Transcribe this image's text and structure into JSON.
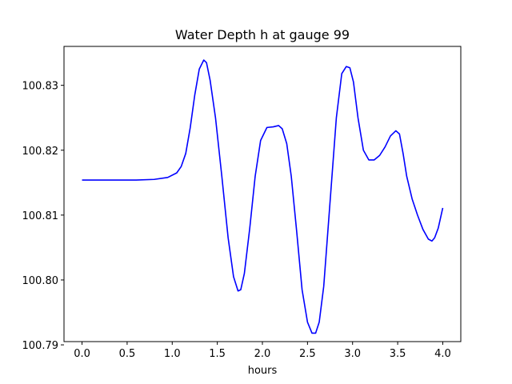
{
  "chart_data": {
    "type": "line",
    "title": "Water Depth h at gauge 99",
    "xlabel": "hours",
    "ylabel": "",
    "xlim": [
      -0.2,
      4.2
    ],
    "ylim": [
      100.7905,
      100.836
    ],
    "xticks": [
      0.0,
      0.5,
      1.0,
      1.5,
      2.0,
      2.5,
      3.0,
      3.5,
      4.0
    ],
    "xtick_labels": [
      "0.0",
      "0.5",
      "1.0",
      "1.5",
      "2.0",
      "2.5",
      "3.0",
      "3.5",
      "4.0"
    ],
    "yticks": [
      100.79,
      100.8,
      100.81,
      100.82,
      100.83
    ],
    "ytick_labels": [
      "100.79",
      "100.80",
      "100.81",
      "100.82",
      "100.83"
    ],
    "grid": false,
    "legend": "none",
    "series": [
      {
        "color": "#0000ff",
        "x": [
          0.0,
          0.2,
          0.4,
          0.6,
          0.8,
          0.95,
          1.05,
          1.1,
          1.15,
          1.2,
          1.25,
          1.3,
          1.35,
          1.38,
          1.42,
          1.48,
          1.55,
          1.62,
          1.68,
          1.73,
          1.76,
          1.8,
          1.86,
          1.92,
          1.98,
          2.05,
          2.12,
          2.18,
          2.22,
          2.27,
          2.32,
          2.38,
          2.44,
          2.5,
          2.55,
          2.59,
          2.63,
          2.68,
          2.75,
          2.82,
          2.88,
          2.93,
          2.97,
          3.01,
          3.06,
          3.12,
          3.18,
          3.24,
          3.3,
          3.36,
          3.42,
          3.48,
          3.52,
          3.56,
          3.6,
          3.66,
          3.72,
          3.78,
          3.84,
          3.88,
          3.91,
          3.95,
          4.0
        ],
        "y": [
          100.8154,
          100.8154,
          100.8154,
          100.8154,
          100.8155,
          100.8158,
          100.8165,
          100.8175,
          100.8195,
          100.8235,
          100.8285,
          100.8325,
          100.8339,
          100.8335,
          100.8308,
          100.825,
          100.816,
          100.8065,
          100.8005,
          100.7983,
          100.7985,
          100.801,
          100.808,
          100.816,
          100.8215,
          100.8235,
          100.8236,
          100.8238,
          100.8233,
          100.821,
          100.816,
          100.8075,
          100.7985,
          100.7935,
          100.7918,
          100.7918,
          100.7935,
          100.799,
          100.812,
          100.825,
          100.8318,
          100.8329,
          100.8327,
          100.8305,
          100.825,
          100.82,
          100.8185,
          100.8185,
          100.8192,
          100.8205,
          100.8222,
          100.823,
          100.8225,
          100.8195,
          100.816,
          100.8125,
          100.81,
          100.8078,
          100.8063,
          100.806,
          100.8065,
          100.808,
          100.8111
        ]
      }
    ]
  }
}
